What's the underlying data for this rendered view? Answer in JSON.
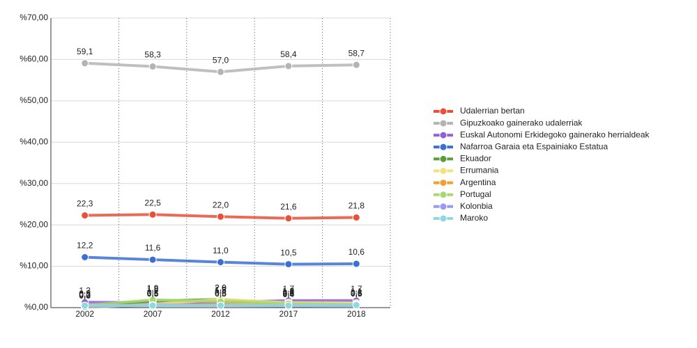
{
  "chart_data": {
    "type": "line",
    "categories": [
      "2002",
      "2007",
      "2012",
      "2017",
      "2018"
    ],
    "ylim": [
      0,
      70
    ],
    "yticks": [
      {
        "value": 0,
        "label": "%0,00"
      },
      {
        "value": 10,
        "label": "%10,00"
      },
      {
        "value": 20,
        "label": "%20,00"
      },
      {
        "value": 30,
        "label": "%30,00"
      },
      {
        "value": 40,
        "label": "%40,00"
      },
      {
        "value": 50,
        "label": "%50,00"
      },
      {
        "value": 60,
        "label": "%60,00"
      },
      {
        "value": 70,
        "label": "%70,00"
      }
    ],
    "grid": true,
    "legend": "right",
    "series": [
      {
        "name": "Udalerrian bertan",
        "color": "#e8503a",
        "values": [
          22.3,
          22.5,
          22.0,
          21.6,
          21.8
        ],
        "value_labels": [
          "22,3",
          "22,5",
          "22,0",
          "21,6",
          "21,8"
        ]
      },
      {
        "name": "Gipuzkoako gainerako udalerriak",
        "color": "#b4b4b4",
        "values": [
          59.1,
          58.3,
          57.0,
          58.4,
          58.7
        ],
        "value_labels": [
          "59,1",
          "58,3",
          "57,0",
          "58,4",
          "58,7"
        ]
      },
      {
        "name": "Euskal Autonomi Erkidegoko gainerako herrialdeak",
        "color": "#9160d2",
        "values": [
          1.3,
          1.2,
          1.3,
          1.7,
          1.7
        ],
        "value_labels": [
          "1,3",
          "1,2",
          "1,3",
          "1,7",
          "1,7"
        ]
      },
      {
        "name": "Nafarroa Garaia eta Espainiako Estatua",
        "color": "#3b6fd4",
        "values": [
          12.2,
          11.6,
          11.0,
          10.5,
          10.6
        ],
        "value_labels": [
          "12,2",
          "11,6",
          "11,0",
          "10,5",
          "10,6"
        ]
      },
      {
        "name": "Ekuador",
        "color": "#5a9e3a",
        "values": [
          0.3,
          1.6,
          2.0,
          0.8,
          0.6
        ],
        "value_labels": [
          "0,3",
          "1,6",
          "2,0",
          "0,8",
          "0,6"
        ]
      },
      {
        "name": "Errumania",
        "color": "#f2e27e",
        "values": [
          0.0,
          0.8,
          2.0,
          1.2,
          1.1
        ],
        "value_labels": [
          "0,0",
          "0,8",
          "2,0",
          "1,2",
          "1,1"
        ]
      },
      {
        "name": "Argentina",
        "color": "#f0a030",
        "values": [
          0.3,
          0.5,
          0.8,
          0.6,
          0.6
        ],
        "value_labels": [
          "0,3",
          "0,5",
          "0,8",
          "0,6",
          "0,6"
        ]
      },
      {
        "name": "Portugal",
        "color": "#a8d870",
        "values": [
          0.5,
          1.9,
          1.5,
          1.0,
          0.8
        ],
        "value_labels": [
          "0,5",
          "1,9",
          "1,5",
          "1,0",
          "0,8"
        ]
      },
      {
        "name": "Kolonbia",
        "color": "#9a9af0",
        "values": [
          0.2,
          0.6,
          0.5,
          0.4,
          0.5
        ],
        "value_labels": [
          "0,2",
          "0,6",
          "0,5",
          "0,4",
          "0,5"
        ]
      },
      {
        "name": "Maroko",
        "color": "#8ed8e0",
        "values": [
          0.5,
          0.5,
          0.5,
          0.5,
          0.6
        ],
        "value_labels": [
          "0,5",
          "0,5",
          "0,5",
          "0,5",
          "0,6"
        ]
      }
    ]
  }
}
